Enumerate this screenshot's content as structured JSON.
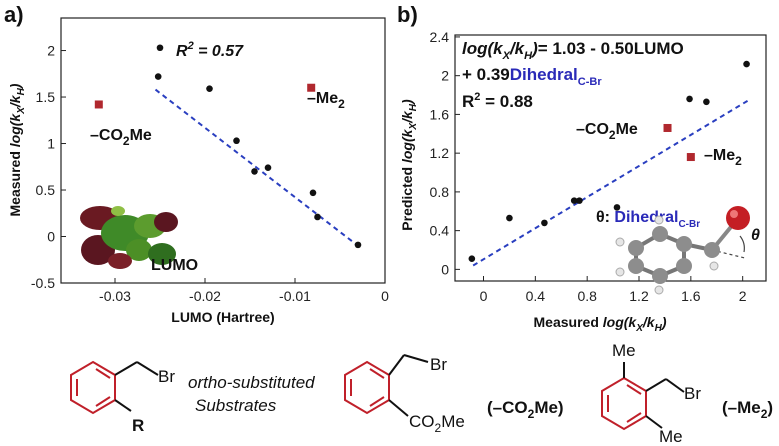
{
  "chart_data": [
    {
      "type": "scatter",
      "panel_label": "a)",
      "title": "",
      "xlabel": "LUMO (Hartree)",
      "ylabel": "Measured log(kX/kH)",
      "xlim": [
        -0.036,
        0
      ],
      "ylim": [
        -0.5,
        2.35
      ],
      "xticks": [
        "-0.03",
        "-0.02",
        "-0.01",
        "0"
      ],
      "yticks": [
        "-0.5",
        "0",
        "0.5",
        "1",
        "1.5",
        "2"
      ],
      "annotation": "R2 = 0.57",
      "fit_line": {
        "x": [
          -0.0255,
          -0.003
        ],
        "y": [
          1.58,
          -0.1
        ]
      },
      "points": [
        {
          "x": -0.025,
          "y": 2.03
        },
        {
          "x": -0.0252,
          "y": 1.72
        },
        {
          "x": -0.0195,
          "y": 1.59
        },
        {
          "x": -0.0165,
          "y": 1.03
        },
        {
          "x": -0.0145,
          "y": 0.7
        },
        {
          "x": -0.013,
          "y": 0.74
        },
        {
          "x": -0.008,
          "y": 0.47
        },
        {
          "x": -0.0075,
          "y": 0.21
        },
        {
          "x": -0.003,
          "y": -0.09
        }
      ],
      "outliers": [
        {
          "x": -0.0318,
          "y": 1.42,
          "label": "–CO2Me"
        },
        {
          "x": -0.0082,
          "y": 1.6,
          "label": "–Me2"
        }
      ],
      "inset_label": "LUMO"
    },
    {
      "type": "scatter",
      "panel_label": "b)",
      "title": "",
      "xlabel": "Measured log(kX/kH)",
      "ylabel": "Predicted log(kX/kH)",
      "xlim": [
        -0.22,
        2.18
      ],
      "ylim": [
        -0.12,
        2.42
      ],
      "xticks": [
        "0",
        "0.4",
        "0.8",
        "1.2",
        "1.6",
        "2"
      ],
      "yticks": [
        "0",
        "0.4",
        "0.8",
        "1.2",
        "1.6",
        "2",
        "2.4"
      ],
      "equation_line1": "log(kX/kH)= 1.03 - 0.50LUMO",
      "equation_line2": "+ 0.39DihedralC-Br",
      "annotation": "R2 = 0.88",
      "fit_line": {
        "x": [
          -0.08,
          2.05
        ],
        "y": [
          0.04,
          1.75
        ]
      },
      "points": [
        {
          "x": -0.09,
          "y": 0.11
        },
        {
          "x": 0.2,
          "y": 0.53
        },
        {
          "x": 0.47,
          "y": 0.48
        },
        {
          "x": 0.7,
          "y": 0.71
        },
        {
          "x": 0.74,
          "y": 0.71
        },
        {
          "x": 1.03,
          "y": 0.64
        },
        {
          "x": 1.59,
          "y": 1.76
        },
        {
          "x": 1.72,
          "y": 1.73
        },
        {
          "x": 2.03,
          "y": 2.12
        }
      ],
      "outliers": [
        {
          "x": 1.42,
          "y": 1.46,
          "label": "–CO2Me"
        },
        {
          "x": 1.6,
          "y": 1.16,
          "label": "–Me2"
        }
      ],
      "inset_label": "θ: DihedralC-Br",
      "theta": "θ"
    }
  ],
  "structures": {
    "general": {
      "br": "Br",
      "r": "R",
      "caption_line1": "ortho-substituted",
      "caption_line2": "Substrates"
    },
    "ester": {
      "br": "Br",
      "co2me": "CO2Me",
      "label": "(–CO2Me)"
    },
    "dimethyl": {
      "br": "Br",
      "me_top": "Me",
      "me_bottom": "Me",
      "label": "(–Me2)"
    }
  },
  "colors": {
    "point": "#111111",
    "outlier": "#b0282e",
    "fit": "#2a3fc0",
    "ring": "#c0202a",
    "blue_text": "#2a2ab8"
  }
}
